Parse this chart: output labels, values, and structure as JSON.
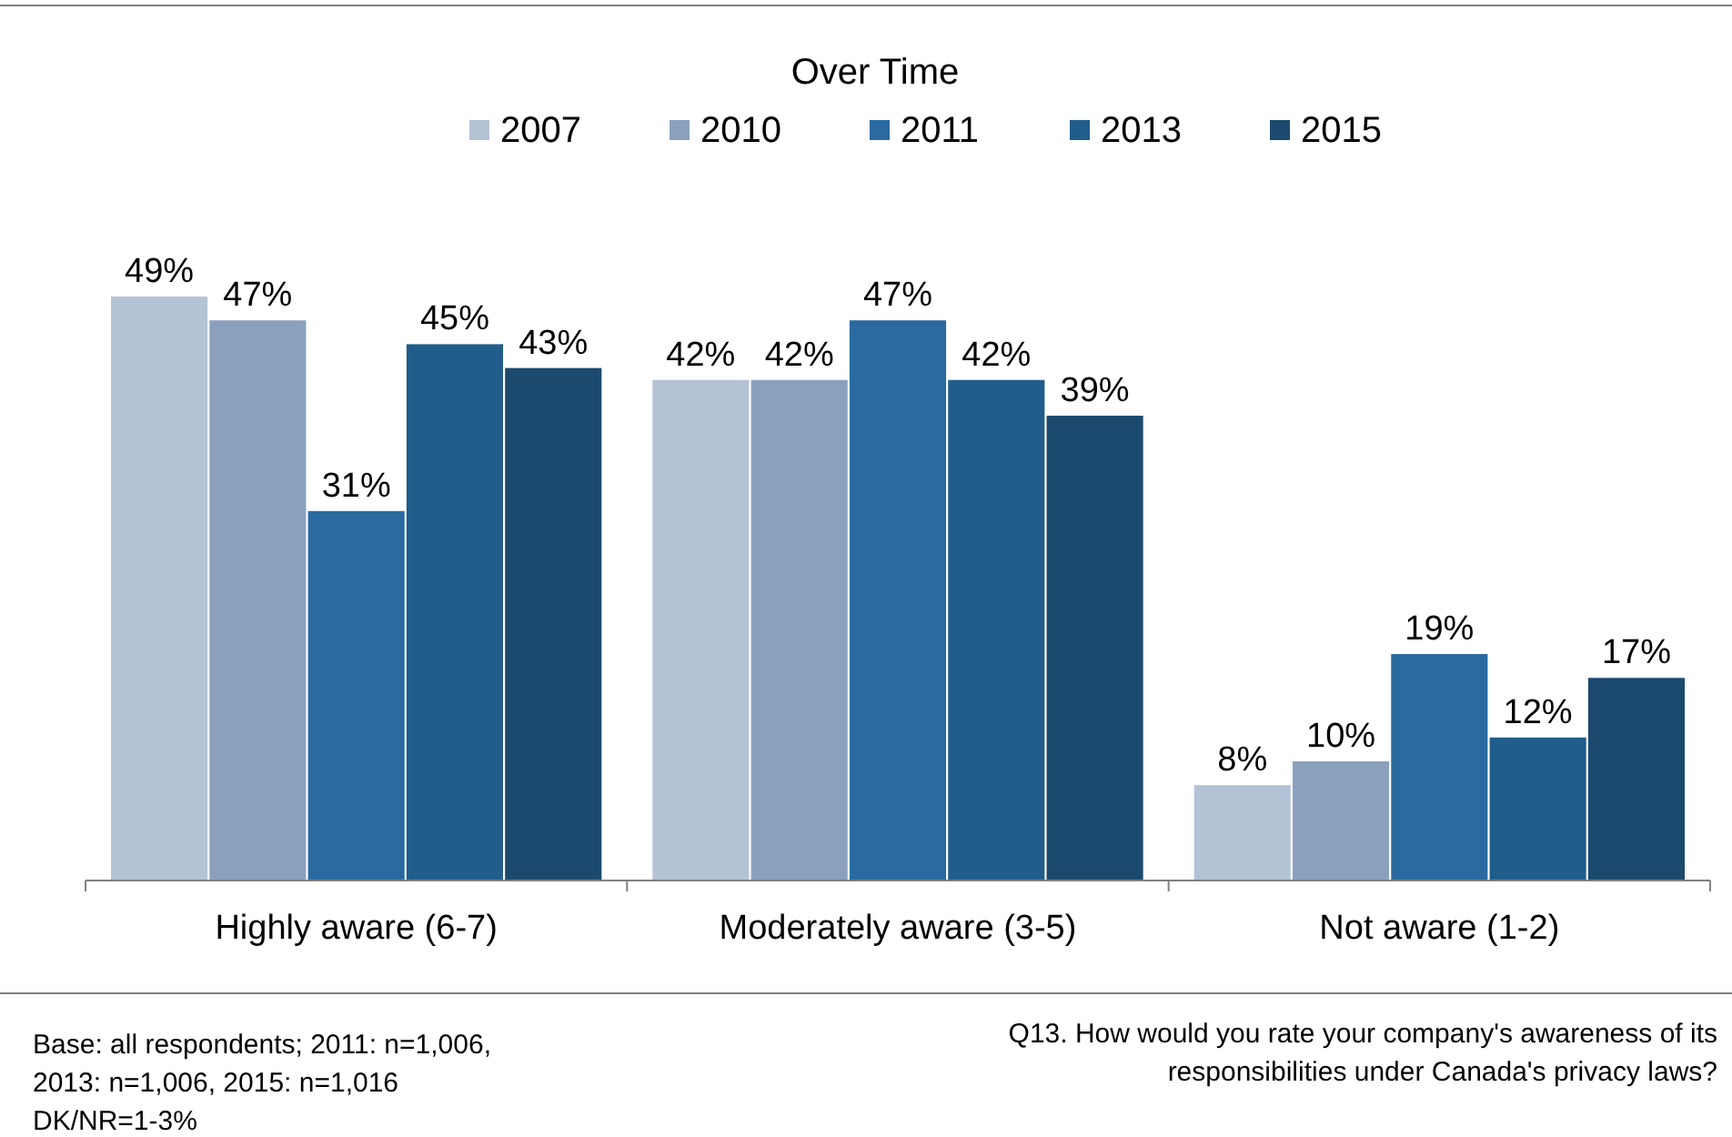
{
  "chart_data": {
    "type": "bar",
    "title": "Over Time",
    "categories": [
      "Highly aware (6-7)",
      "Moderately aware (3-5)",
      "Not aware (1-2)"
    ],
    "series": [
      {
        "name": "2007",
        "color": "#b4c2d6",
        "values": [
          49,
          42,
          8
        ],
        "value_labels": [
          "49%",
          "42%",
          "8%"
        ]
      },
      {
        "name": "2010",
        "color": "#8aa0bd",
        "values": [
          47,
          42,
          10
        ],
        "value_labels": [
          "47%",
          "42%",
          "10%"
        ]
      },
      {
        "name": "2011",
        "color": "#2a6aa0",
        "values": [
          31,
          47,
          19
        ],
        "value_labels": [
          "31%",
          "47%",
          "19%"
        ]
      },
      {
        "name": "2013",
        "color": "#215d8b",
        "values": [
          45,
          42,
          12
        ],
        "value_labels": [
          "45%",
          "42%",
          "12%"
        ]
      },
      {
        "name": "2015",
        "color": "#1c4a6e",
        "values": [
          43,
          39,
          17
        ],
        "value_labels": [
          "43%",
          "39%",
          "17%"
        ]
      }
    ],
    "legend": "top",
    "grid": false,
    "annotations": [
      "Base: all respondents; 2011: n=1,006,\n2013: n=1,006, 2015: n=1,016\nDK/NR=1-3%",
      "Q13. How would you rate your company's awareness of its\nresponsibilities under Canada's privacy laws?"
    ]
  }
}
